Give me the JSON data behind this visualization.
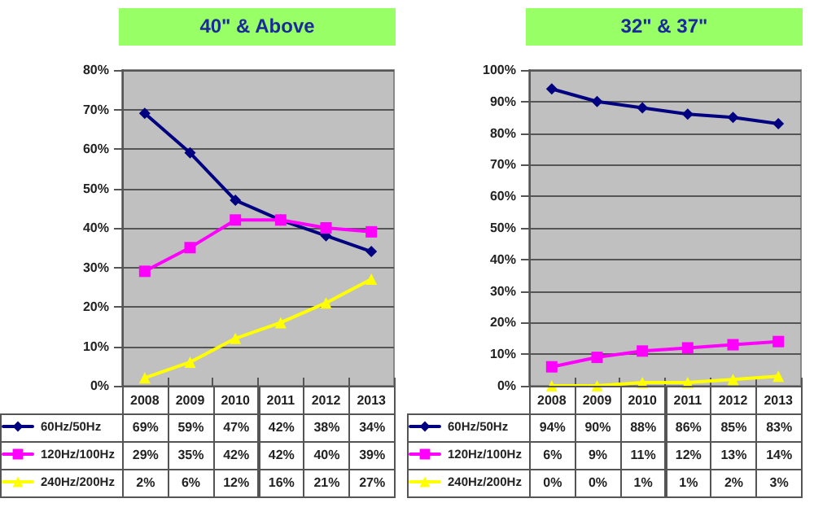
{
  "chart_data": [
    {
      "type": "line",
      "title": "40\" & Above",
      "categories": [
        "2008",
        "2009",
        "2010",
        "2011",
        "2012",
        "2013"
      ],
      "ylim": [
        0,
        80
      ],
      "yticks": [
        {
          "value": 0,
          "label": "0%"
        },
        {
          "value": 10,
          "label": "10%"
        },
        {
          "value": 20,
          "label": "20%"
        },
        {
          "value": 30,
          "label": "30%"
        },
        {
          "value": 40,
          "label": "40%"
        },
        {
          "value": 50,
          "label": "50%"
        },
        {
          "value": 60,
          "label": "60%"
        },
        {
          "value": 70,
          "label": "70%"
        },
        {
          "value": 80,
          "label": "80%"
        }
      ],
      "grid": "y",
      "legend": "bottom left",
      "series": [
        {
          "name": "60Hz/50Hz",
          "color": "#000080",
          "marker": "diamond",
          "values": [
            69,
            59,
            47,
            42,
            38,
            34
          ],
          "value_labels": [
            "69%",
            "59%",
            "47%",
            "42%",
            "38%",
            "34%"
          ]
        },
        {
          "name": "120Hz/100Hz",
          "color": "#ff00ff",
          "marker": "square",
          "values": [
            29,
            35,
            42,
            42,
            40,
            39
          ],
          "value_labels": [
            "29%",
            "35%",
            "42%",
            "42%",
            "40%",
            "39%"
          ]
        },
        {
          "name": "240Hz/200Hz",
          "color": "#ffff00",
          "marker": "triangle",
          "values": [
            2,
            6,
            12,
            16,
            21,
            27
          ],
          "value_labels": [
            "2%",
            "6%",
            "12%",
            "16%",
            "21%",
            "27%"
          ]
        }
      ]
    },
    {
      "type": "line",
      "title": "32\" &  37\"",
      "categories": [
        "2008",
        "2009",
        "2010",
        "2011",
        "2012",
        "2013"
      ],
      "ylim": [
        0,
        100
      ],
      "yticks": [
        {
          "value": 0,
          "label": "0%"
        },
        {
          "value": 10,
          "label": "10%"
        },
        {
          "value": 20,
          "label": "20%"
        },
        {
          "value": 30,
          "label": "30%"
        },
        {
          "value": 40,
          "label": "40%"
        },
        {
          "value": 50,
          "label": "50%"
        },
        {
          "value": 60,
          "label": "60%"
        },
        {
          "value": 70,
          "label": "70%"
        },
        {
          "value": 80,
          "label": "80%"
        },
        {
          "value": 90,
          "label": "90%"
        },
        {
          "value": 100,
          "label": "100%"
        }
      ],
      "grid": "y",
      "legend": "bottom left",
      "series": [
        {
          "name": "60Hz/50Hz",
          "color": "#000080",
          "marker": "diamond",
          "values": [
            94,
            90,
            88,
            86,
            85,
            83
          ],
          "value_labels": [
            "94%",
            "90%",
            "88%",
            "86%",
            "85%",
            "83%"
          ]
        },
        {
          "name": "120Hz/100Hz",
          "color": "#ff00ff",
          "marker": "square",
          "values": [
            6,
            9,
            11,
            12,
            13,
            14
          ],
          "value_labels": [
            "6%",
            "9%",
            "11%",
            "12%",
            "13%",
            "14%"
          ]
        },
        {
          "name": "240Hz/200Hz",
          "color": "#ffff00",
          "marker": "triangle",
          "values": [
            0,
            0,
            1,
            1,
            2,
            3
          ],
          "value_labels": [
            "0%",
            "0%",
            "1%",
            "1%",
            "2%",
            "3%"
          ]
        }
      ]
    }
  ]
}
